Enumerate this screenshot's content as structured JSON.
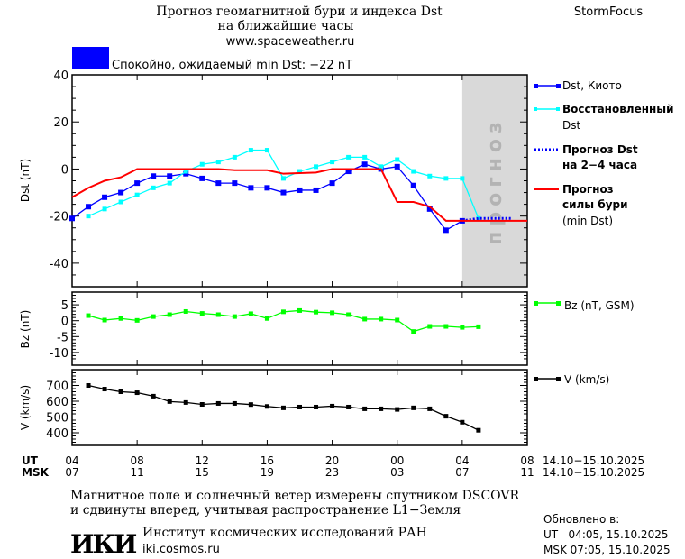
{
  "header": {
    "title_line1": "Прогноз геомагнитной бури и индекса Dst",
    "title_line2": "на ближайшие часы",
    "site": "www.spaceweather.ru",
    "brand": "StormFocus",
    "status_text": "Спокойно, ожидаемый min Dst: −22 nT",
    "status_color": "#0000ff"
  },
  "legend": {
    "dst_kyoto": "Dst, Киото",
    "restored_1": "Восстановленный",
    "restored_2": "Dst",
    "forecast_dst_1": "Прогноз Dst",
    "forecast_dst_2": "на 2−4 часа",
    "storm_1": "Прогноз",
    "storm_2": "силы бури",
    "storm_3": "(min Dst)",
    "bz": "Bz (nT, GSM)",
    "v": "V (km/s)"
  },
  "axes": {
    "ut_label": "UT",
    "msk_label": "MSK",
    "ut_ticks": [
      "04",
      "08",
      "12",
      "16",
      "20",
      "00",
      "04",
      "08"
    ],
    "msk_ticks": [
      "07",
      "11",
      "15",
      "19",
      "23",
      "03",
      "07",
      "11"
    ],
    "date_range_ut": "14.10−15.10.2025",
    "date_range_msk": "14.10−15.10.2025"
  },
  "footer": {
    "note_1": "Магнитное поле и солнечный ветер измерены спутником DSCOVR",
    "note_2": "и сдвинуты вперед, учитывая распространение L1−Земля",
    "institute": "Институт космических исследований РАН",
    "institute_site": "iki.cosmos.ru",
    "logo_text": "ИКИ",
    "updated_label": "Обновлено в:",
    "updated_ut": "UT   04:05, 15.10.2025",
    "updated_msk": "MSK 07:05, 15.10.2025"
  },
  "chart_data": [
    {
      "type": "line",
      "ylabel": "Dst (nT)",
      "xlim": [
        "2025-10-14T04:00",
        "2025-10-15T08:00"
      ],
      "ylim": [
        -50,
        40
      ],
      "yticks": [
        40,
        20,
        0,
        -20,
        -40
      ],
      "forecast_region": {
        "from": "2025-10-15T04:00",
        "to": "2025-10-15T08:00",
        "label": "прогноз",
        "color": "#d9d9d9"
      },
      "series": [
        {
          "name": "Dst, Киото",
          "color": "#0000ff",
          "marker": "square",
          "start": "2025-10-14T04:00",
          "step_hours": 1,
          "values": [
            -21,
            -16,
            -12,
            -10,
            -6,
            -3,
            -3,
            -2,
            -4,
            -6,
            -6,
            -8,
            -8,
            -10,
            -9,
            -9,
            -6,
            -1,
            2,
            0,
            1,
            -7,
            -17,
            -26,
            -22
          ]
        },
        {
          "name": "Восстановленный Dst",
          "color": "#00ffff",
          "marker": "square",
          "start": "2025-10-14T05:00",
          "step_hours": 1,
          "values": [
            -20,
            -17,
            -14,
            -11,
            -8,
            -6,
            -1,
            2,
            3,
            5,
            8,
            8,
            -4,
            -1,
            1,
            3,
            5,
            5,
            1,
            4,
            -1,
            -3,
            -4,
            -4,
            -21
          ]
        },
        {
          "name": "Прогноз Dst на 2−4 часа",
          "color": "#0000ff",
          "style": "dotted",
          "points": [
            [
              "2025-10-15T04:00",
              -22
            ],
            [
              "2025-10-15T05:00",
              -21
            ],
            [
              "2025-10-15T07:00",
              -21
            ]
          ]
        },
        {
          "name": "Прогноз силы бури (min Dst)",
          "color": "#ff0000",
          "style": "solid",
          "points": [
            [
              "2025-10-14T04:00",
              -12
            ],
            [
              "2025-10-14T05:00",
              -8
            ],
            [
              "2025-10-14T06:00",
              -5
            ],
            [
              "2025-10-14T07:00",
              -3.5
            ],
            [
              "2025-10-14T08:00",
              0
            ],
            [
              "2025-10-14T13:00",
              0
            ],
            [
              "2025-10-14T14:00",
              -0.5
            ],
            [
              "2025-10-14T16:00",
              -0.5
            ],
            [
              "2025-10-14T17:00",
              -2
            ],
            [
              "2025-10-14T19:00",
              -1.5
            ],
            [
              "2025-10-14T20:00",
              0
            ],
            [
              "2025-10-14T23:00",
              0
            ],
            [
              "2025-10-15T00:00",
              -14
            ],
            [
              "2025-10-15T01:00",
              -14
            ],
            [
              "2025-10-15T02:00",
              -16
            ],
            [
              "2025-10-15T03:00",
              -22
            ],
            [
              "2025-10-15T08:00",
              -22
            ]
          ]
        }
      ]
    },
    {
      "type": "line",
      "ylabel": "Bz (nT)",
      "ylim": [
        -14,
        9
      ],
      "yticks": [
        5,
        0,
        -5,
        -10
      ],
      "series": [
        {
          "name": "Bz (nT, GSM)",
          "color": "#00ff00",
          "marker": "square",
          "start": "2025-10-14T05:00",
          "step_hours": 1,
          "values": [
            1.6,
            0.2,
            0.7,
            0.1,
            1.3,
            1.9,
            2.9,
            2.3,
            1.9,
            1.3,
            2.2,
            0.7,
            2.8,
            3.2,
            2.7,
            2.5,
            1.9,
            0.5,
            0.5,
            0.2,
            -3.4,
            -1.8,
            -1.8,
            -2.1,
            -1.9
          ]
        }
      ]
    },
    {
      "type": "line",
      "ylabel": "V (km/s)",
      "ylim": [
        320,
        800
      ],
      "yticks": [
        700,
        600,
        500,
        400
      ],
      "series": [
        {
          "name": "V (km/s)",
          "color": "#000000",
          "marker": "square",
          "start": "2025-10-14T05:00",
          "step_hours": 1,
          "values": [
            700,
            677,
            660,
            654,
            632,
            598,
            592,
            580,
            586,
            586,
            579,
            567,
            558,
            563,
            563,
            569,
            563,
            552,
            552,
            548,
            558,
            552,
            505,
            467,
            416
          ]
        }
      ]
    }
  ]
}
